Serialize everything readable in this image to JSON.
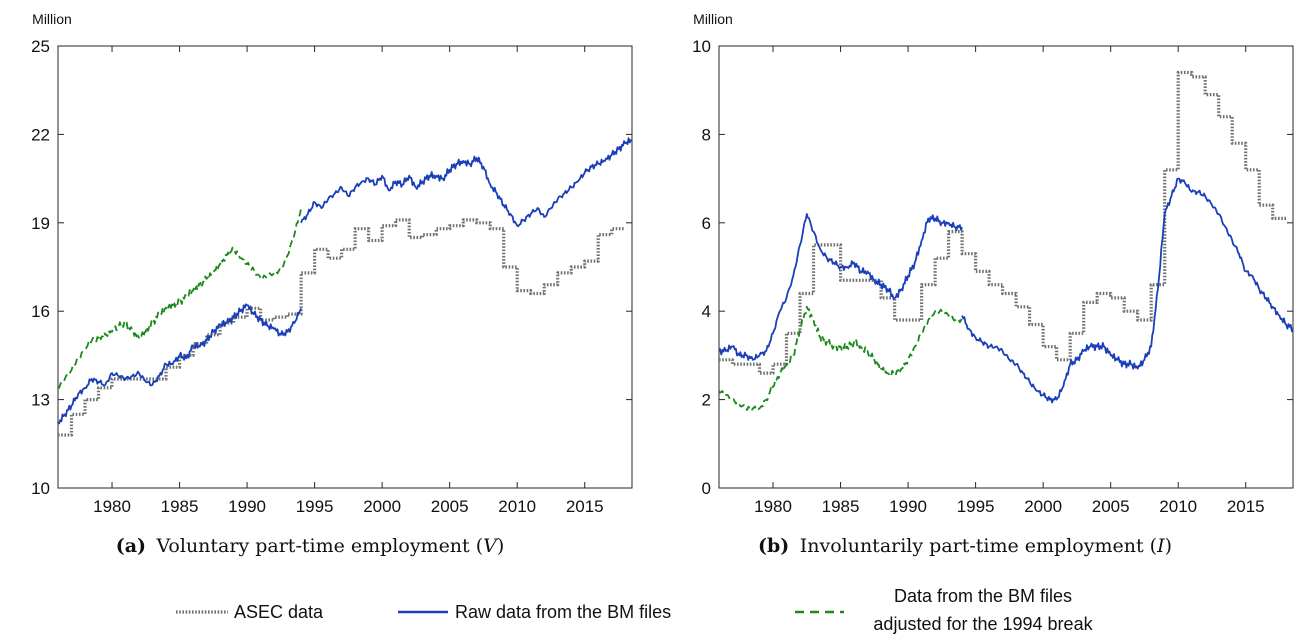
{
  "legend": [
    {
      "label": "ASEC data",
      "color": "#707070",
      "dash": "dotted"
    },
    {
      "label": "Raw data from the BM files",
      "color": "#1a3fb8",
      "dash": "solid"
    },
    {
      "label_line1": "Data from the BM files",
      "label_line2": "adjusted for the 1994 break",
      "color": "#1b8a1b",
      "dash": "dashed"
    }
  ],
  "chart_data": [
    {
      "type": "line",
      "panel_label": "(a)",
      "caption_text": "Voluntary part-time employment (",
      "caption_symbol": "V",
      "caption_close": ")",
      "unit_label": "Million",
      "xlim": [
        1976,
        2018.5
      ],
      "ylim": [
        10,
        25
      ],
      "xticks": [
        1980,
        1985,
        1990,
        1995,
        2000,
        2005,
        2010,
        2015
      ],
      "yticks": [
        10,
        13,
        16,
        19,
        22,
        25
      ],
      "series": [
        {
          "name": "ASEC data",
          "step": true,
          "x": [
            1976,
            1977,
            1978,
            1979,
            1980,
            1981,
            1982,
            1983,
            1984,
            1985,
            1986,
            1987,
            1988,
            1989,
            1990,
            1991,
            1992,
            1993,
            1994,
            1995,
            1996,
            1997,
            1998,
            1999,
            2000,
            2001,
            2002,
            2003,
            2004,
            2005,
            2006,
            2007,
            2008,
            2009,
            2010,
            2011,
            2012,
            2013,
            2014,
            2015,
            2016,
            2017
          ],
          "y": [
            11.8,
            12.5,
            13.0,
            13.4,
            13.7,
            13.7,
            13.7,
            13.7,
            14.1,
            14.5,
            14.9,
            15.2,
            15.6,
            15.8,
            16.1,
            15.7,
            15.8,
            15.9,
            17.3,
            18.1,
            17.8,
            18.1,
            18.8,
            18.4,
            18.9,
            19.1,
            18.5,
            18.6,
            18.8,
            18.9,
            19.1,
            19.0,
            18.8,
            17.5,
            16.7,
            16.6,
            16.9,
            17.3,
            17.5,
            17.7,
            18.6,
            18.8
          ]
        },
        {
          "name": "Raw data from the BM files",
          "step": false,
          "x": [
            1976.0,
            1976.5,
            1977.0,
            1977.5,
            1978.0,
            1978.5,
            1979.0,
            1979.5,
            1980.0,
            1980.5,
            1981.0,
            1981.5,
            1982.0,
            1982.5,
            1983.0,
            1983.5,
            1984.0,
            1984.5,
            1985.0,
            1985.5,
            1986.0,
            1986.5,
            1987.0,
            1987.5,
            1988.0,
            1988.5,
            1989.0,
            1989.5,
            1990.0,
            1990.5,
            1991.0,
            1991.5,
            1992.0,
            1992.5,
            1993.0,
            1993.5,
            1994.0,
            1994.0,
            1994.5,
            1995.0,
            1995.5,
            1996.0,
            1996.5,
            1997.0,
            1997.5,
            1998.0,
            1998.5,
            1999.0,
            1999.5,
            2000.0,
            2000.5,
            2001.0,
            2001.5,
            2002.0,
            2002.5,
            2003.0,
            2003.5,
            2004.0,
            2004.5,
            2005.0,
            2005.5,
            2006.0,
            2006.5,
            2007.0,
            2007.5,
            2008.0,
            2008.5,
            2009.0,
            2009.5,
            2010.0,
            2010.5,
            2011.0,
            2011.5,
            2012.0,
            2012.5,
            2013.0,
            2013.5,
            2014.0,
            2014.5,
            2015.0,
            2015.5,
            2016.0,
            2016.5,
            2017.0,
            2017.5,
            2018.0,
            2018.5
          ],
          "y": [
            12.2,
            12.5,
            12.8,
            13.2,
            13.4,
            13.7,
            13.6,
            13.5,
            13.9,
            13.8,
            13.7,
            13.8,
            13.9,
            13.6,
            13.5,
            13.8,
            14.2,
            14.2,
            14.5,
            14.4,
            14.8,
            14.8,
            15.0,
            15.3,
            15.5,
            15.6,
            15.8,
            16.0,
            16.2,
            15.9,
            15.7,
            15.5,
            15.4,
            15.2,
            15.3,
            15.6,
            16.1,
            19.0,
            19.3,
            19.7,
            19.5,
            19.8,
            20.0,
            20.2,
            19.9,
            20.2,
            20.4,
            20.5,
            20.3,
            20.6,
            20.1,
            20.4,
            20.3,
            20.6,
            20.2,
            20.4,
            20.6,
            20.6,
            20.5,
            20.8,
            21.0,
            21.1,
            21.0,
            21.2,
            20.9,
            20.3,
            20.0,
            19.6,
            19.3,
            18.9,
            19.1,
            19.3,
            19.5,
            19.2,
            19.5,
            19.8,
            20.0,
            20.2,
            20.4,
            20.7,
            20.9,
            21.0,
            21.1,
            21.3,
            21.5,
            21.7,
            21.8
          ]
        },
        {
          "name": "Data from the BM files adjusted for the 1994 break",
          "step": false,
          "x": [
            1976.0,
            1976.5,
            1977.0,
            1977.5,
            1978.0,
            1978.5,
            1979.0,
            1979.5,
            1980.0,
            1980.5,
            1981.0,
            1981.5,
            1982.0,
            1982.5,
            1983.0,
            1983.5,
            1984.0,
            1984.5,
            1985.0,
            1985.5,
            1986.0,
            1986.5,
            1987.0,
            1987.5,
            1988.0,
            1988.5,
            1989.0,
            1989.5,
            1990.0,
            1990.5,
            1991.0,
            1991.5,
            1992.0,
            1992.5,
            1993.0,
            1993.5,
            1994.0
          ],
          "y": [
            13.4,
            13.7,
            14.0,
            14.4,
            14.7,
            15.0,
            15.1,
            15.2,
            15.3,
            15.5,
            15.6,
            15.3,
            15.1,
            15.3,
            15.6,
            15.9,
            16.1,
            16.2,
            16.3,
            16.5,
            16.7,
            16.9,
            17.1,
            17.3,
            17.6,
            17.9,
            18.1,
            17.8,
            17.6,
            17.4,
            17.1,
            17.2,
            17.3,
            17.4,
            17.9,
            18.6,
            19.5
          ]
        }
      ]
    },
    {
      "type": "line",
      "panel_label": "(b)",
      "caption_text": "Involuntarily part-time employment (",
      "caption_symbol": "I",
      "caption_close": ")",
      "unit_label": "Million",
      "xlim": [
        1976,
        2018.5
      ],
      "ylim": [
        0,
        10
      ],
      "xticks": [
        1980,
        1985,
        1990,
        1995,
        2000,
        2005,
        2010,
        2015
      ],
      "yticks": [
        0,
        2,
        4,
        6,
        8,
        10
      ],
      "series": [
        {
          "name": "ASEC data",
          "step": true,
          "x": [
            1976,
            1977,
            1978,
            1979,
            1980,
            1981,
            1982,
            1983,
            1984,
            1985,
            1986,
            1987,
            1988,
            1989,
            1990,
            1991,
            1992,
            1993,
            1994,
            1995,
            1996,
            1997,
            1998,
            1999,
            2000,
            2001,
            2002,
            2003,
            2004,
            2005,
            2006,
            2007,
            2008,
            2009,
            2010,
            2011,
            2012,
            2013,
            2014,
            2015,
            2016,
            2017
          ],
          "y": [
            2.9,
            2.8,
            2.8,
            2.6,
            2.8,
            3.5,
            4.4,
            5.5,
            5.5,
            4.7,
            4.7,
            4.7,
            4.3,
            3.8,
            3.8,
            4.6,
            5.2,
            5.8,
            5.3,
            4.9,
            4.6,
            4.4,
            4.1,
            3.7,
            3.2,
            2.9,
            3.5,
            4.2,
            4.4,
            4.3,
            4.0,
            3.8,
            4.6,
            7.2,
            9.4,
            9.3,
            8.9,
            8.4,
            7.8,
            7.2,
            6.4,
            6.1
          ]
        },
        {
          "name": "Raw data from the BM files",
          "step": false,
          "x": [
            1976.0,
            1976.5,
            1977.0,
            1977.5,
            1978.0,
            1978.5,
            1979.0,
            1979.5,
            1980.0,
            1980.5,
            1981.0,
            1981.5,
            1982.0,
            1982.5,
            1983.0,
            1983.5,
            1984.0,
            1984.5,
            1985.0,
            1985.5,
            1986.0,
            1986.5,
            1987.0,
            1987.5,
            1988.0,
            1988.5,
            1989.0,
            1989.5,
            1990.0,
            1990.5,
            1991.0,
            1991.5,
            1992.0,
            1992.5,
            1993.0,
            1993.5,
            1994.0,
            1994.0,
            1994.5,
            1995.0,
            1995.5,
            1996.0,
            1996.5,
            1997.0,
            1997.5,
            1998.0,
            1998.5,
            1999.0,
            1999.5,
            2000.0,
            2000.5,
            2001.0,
            2001.5,
            2002.0,
            2002.5,
            2003.0,
            2003.5,
            2004.0,
            2004.5,
            2005.0,
            2005.5,
            2006.0,
            2006.5,
            2007.0,
            2007.5,
            2008.0,
            2008.5,
            2009.0,
            2009.5,
            2010.0,
            2010.5,
            2011.0,
            2011.5,
            2012.0,
            2012.5,
            2013.0,
            2013.5,
            2014.0,
            2014.5,
            2015.0,
            2015.5,
            2016.0,
            2016.5,
            2017.0,
            2017.5,
            2018.0,
            2018.5
          ],
          "y": [
            3.1,
            3.1,
            3.2,
            3.0,
            3.0,
            2.9,
            3.0,
            3.1,
            3.5,
            4.0,
            4.3,
            4.8,
            5.5,
            6.2,
            5.8,
            5.4,
            5.2,
            5.1,
            5.0,
            5.0,
            5.1,
            4.9,
            4.9,
            4.7,
            4.6,
            4.5,
            4.3,
            4.5,
            4.8,
            5.1,
            5.6,
            6.1,
            6.1,
            6.0,
            6.0,
            5.9,
            5.9,
            3.9,
            3.6,
            3.4,
            3.3,
            3.2,
            3.2,
            3.1,
            2.9,
            2.8,
            2.6,
            2.4,
            2.2,
            2.1,
            2.0,
            2.0,
            2.3,
            2.8,
            2.9,
            3.1,
            3.2,
            3.2,
            3.2,
            3.0,
            2.9,
            2.8,
            2.8,
            2.7,
            2.9,
            3.2,
            4.5,
            6.2,
            6.6,
            7.0,
            6.9,
            6.7,
            6.7,
            6.6,
            6.4,
            6.2,
            5.9,
            5.6,
            5.3,
            4.9,
            4.8,
            4.5,
            4.3,
            4.1,
            3.9,
            3.7,
            3.6
          ]
        },
        {
          "name": "Data from the BM files adjusted for the 1994 break",
          "step": false,
          "x": [
            1976.0,
            1976.5,
            1977.0,
            1977.5,
            1978.0,
            1978.5,
            1979.0,
            1979.5,
            1980.0,
            1980.5,
            1981.0,
            1981.5,
            1982.0,
            1982.5,
            1983.0,
            1983.5,
            1984.0,
            1984.5,
            1985.0,
            1985.5,
            1986.0,
            1986.5,
            1987.0,
            1987.5,
            1988.0,
            1988.5,
            1989.0,
            1989.5,
            1990.0,
            1990.5,
            1991.0,
            1991.5,
            1992.0,
            1992.5,
            1993.0,
            1993.5,
            1994.0
          ],
          "y": [
            2.2,
            2.1,
            2.0,
            1.9,
            1.8,
            1.8,
            1.8,
            2.0,
            2.3,
            2.6,
            2.8,
            3.0,
            3.6,
            4.1,
            3.8,
            3.4,
            3.3,
            3.2,
            3.2,
            3.2,
            3.3,
            3.2,
            3.1,
            2.9,
            2.7,
            2.6,
            2.6,
            2.7,
            2.9,
            3.2,
            3.5,
            3.8,
            4.0,
            4.0,
            3.9,
            3.8,
            3.8
          ]
        }
      ]
    }
  ]
}
